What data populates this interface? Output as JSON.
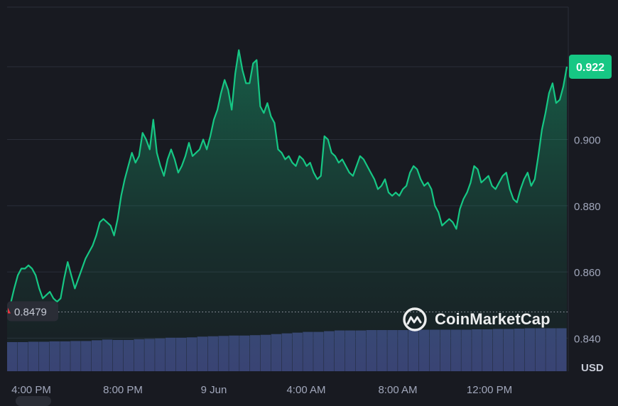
{
  "chart_data": {
    "type": "area",
    "currency": "USD",
    "ylim": [
      0.83,
      0.94
    ],
    "y_ticks": [
      "0.840",
      "0.860",
      "0.880",
      "0.900",
      "0.922"
    ],
    "x_ticks": [
      "4:00 PM",
      "8:00 PM",
      "9 Jun",
      "4:00 AM",
      "8:00 AM",
      "12:00 PM"
    ],
    "current_price": "0.922",
    "open_price": "0.8479",
    "grid": true,
    "price_series": [
      0.8479,
      0.8505,
      0.855,
      0.859,
      0.861,
      0.861,
      0.862,
      0.861,
      0.859,
      0.855,
      0.852,
      0.853,
      0.854,
      0.852,
      0.851,
      0.852,
      0.858,
      0.863,
      0.859,
      0.855,
      0.858,
      0.861,
      0.864,
      0.866,
      0.868,
      0.871,
      0.875,
      0.876,
      0.875,
      0.874,
      0.871,
      0.876,
      0.883,
      0.888,
      0.892,
      0.896,
      0.893,
      0.895,
      0.902,
      0.9,
      0.897,
      0.906,
      0.896,
      0.892,
      0.889,
      0.894,
      0.897,
      0.894,
      0.89,
      0.892,
      0.895,
      0.899,
      0.895,
      0.896,
      0.897,
      0.9,
      0.897,
      0.901,
      0.906,
      0.909,
      0.914,
      0.918,
      0.915,
      0.909,
      0.92,
      0.927,
      0.921,
      0.917,
      0.917,
      0.923,
      0.924,
      0.91,
      0.908,
      0.911,
      0.907,
      0.905,
      0.897,
      0.896,
      0.894,
      0.895,
      0.893,
      0.892,
      0.895,
      0.894,
      0.892,
      0.893,
      0.89,
      0.888,
      0.889,
      0.901,
      0.9,
      0.896,
      0.895,
      0.893,
      0.894,
      0.892,
      0.89,
      0.889,
      0.892,
      0.895,
      0.894,
      0.892,
      0.89,
      0.888,
      0.885,
      0.886,
      0.888,
      0.884,
      0.883,
      0.884,
      0.883,
      0.885,
      0.886,
      0.89,
      0.892,
      0.891,
      0.888,
      0.886,
      0.887,
      0.885,
      0.88,
      0.878,
      0.874,
      0.875,
      0.876,
      0.875,
      0.873,
      0.879,
      0.882,
      0.884,
      0.887,
      0.892,
      0.891,
      0.887,
      0.888,
      0.889,
      0.886,
      0.885,
      0.887,
      0.889,
      0.89,
      0.885,
      0.882,
      0.881,
      0.885,
      0.888,
      0.89,
      0.886,
      0.888,
      0.895,
      0.903,
      0.908,
      0.914,
      0.917,
      0.911,
      0.912,
      0.916,
      0.922
    ],
    "volume_series": [
      0.08,
      0.08,
      0.081,
      0.081,
      0.082,
      0.082,
      0.083,
      0.083,
      0.085,
      0.087,
      0.086,
      0.086,
      0.088,
      0.089,
      0.09,
      0.092,
      0.092,
      0.093,
      0.095,
      0.096,
      0.097,
      0.098,
      0.098,
      0.099,
      0.1,
      0.102,
      0.104,
      0.106,
      0.108,
      0.108,
      0.11,
      0.112,
      0.112,
      0.112,
      0.113,
      0.113,
      0.113,
      0.113,
      0.114,
      0.114,
      0.114,
      0.114,
      0.114,
      0.114,
      0.115,
      0.115,
      0.116,
      0.116,
      0.117,
      0.118,
      0.118,
      0.118,
      0.118
    ]
  },
  "brand": {
    "name": "CoinMarketCap",
    "up_color": "#16c784",
    "down_color": "#ea3943",
    "volume_color": "#3a4173"
  }
}
